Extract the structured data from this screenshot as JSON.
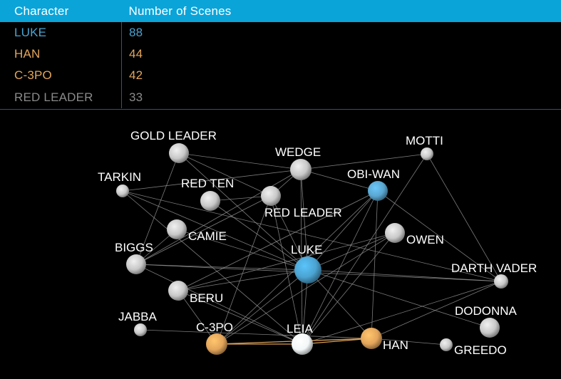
{
  "table": {
    "headers": {
      "character": "Character",
      "scenes": "Number of Scenes"
    },
    "rows": [
      {
        "name": "LUKE",
        "scenes": "88",
        "color": "#4ba3d1"
      },
      {
        "name": "HAN",
        "scenes": "44",
        "color": "#e3a55b"
      },
      {
        "name": "C-3PO",
        "scenes": "42",
        "color": "#e3a55b"
      },
      {
        "name": "RED LEADER",
        "scenes": "33",
        "color": "#8a8a8a"
      }
    ]
  },
  "colors": {
    "header_bg": "#0aa4d9",
    "luke": "#4ba3d1",
    "obi_wan": "#5aa6d0",
    "highlight": "#e3a55b",
    "leia": "#f3f7f7",
    "default_node": "#c8c8c8",
    "edge": "#9a9a9a"
  },
  "network": {
    "nodes": [
      {
        "id": "gold-leader",
        "label": "GOLD LEADER",
        "color": "default",
        "icon": "sphere"
      },
      {
        "id": "wedge",
        "label": "WEDGE",
        "color": "default",
        "icon": "sphere"
      },
      {
        "id": "motti",
        "label": "MOTTI",
        "color": "default",
        "icon": "sphere"
      },
      {
        "id": "tarkin",
        "label": "TARKIN",
        "color": "default",
        "icon": "sphere"
      },
      {
        "id": "red-ten",
        "label": "RED TEN",
        "color": "default",
        "icon": "sphere"
      },
      {
        "id": "obi-wan",
        "label": "OBI-WAN",
        "color": "obi_wan",
        "icon": "sphere"
      },
      {
        "id": "red-leader",
        "label": "RED LEADER",
        "color": "default",
        "icon": "sphere"
      },
      {
        "id": "camie",
        "label": "CAMIE",
        "color": "default",
        "icon": "sphere"
      },
      {
        "id": "owen",
        "label": "OWEN",
        "color": "default",
        "icon": "sphere"
      },
      {
        "id": "biggs",
        "label": "BIGGS",
        "color": "default",
        "icon": "sphere"
      },
      {
        "id": "luke",
        "label": "LUKE",
        "color": "luke",
        "icon": "sphere"
      },
      {
        "id": "darth-vader",
        "label": "DARTH VADER",
        "color": "default",
        "icon": "sphere"
      },
      {
        "id": "beru",
        "label": "BERU",
        "color": "default",
        "icon": "sphere"
      },
      {
        "id": "dodonna",
        "label": "DODONNA",
        "color": "default",
        "icon": "sphere"
      },
      {
        "id": "jabba",
        "label": "JABBA",
        "color": "default",
        "icon": "sphere"
      },
      {
        "id": "c-3po",
        "label": "C-3PO",
        "color": "highlight",
        "icon": "sphere"
      },
      {
        "id": "leia",
        "label": "LEIA",
        "color": "leia",
        "icon": "sphere"
      },
      {
        "id": "han",
        "label": "HAN",
        "color": "highlight",
        "icon": "sphere"
      },
      {
        "id": "greedo",
        "label": "GREEDO",
        "color": "default",
        "icon": "sphere"
      }
    ],
    "edges": [
      [
        "gold-leader",
        "wedge"
      ],
      [
        "gold-leader",
        "red-leader"
      ],
      [
        "gold-leader",
        "luke"
      ],
      [
        "gold-leader",
        "biggs"
      ],
      [
        "wedge",
        "red-leader"
      ],
      [
        "wedge",
        "luke"
      ],
      [
        "wedge",
        "biggs"
      ],
      [
        "wedge",
        "leia"
      ],
      [
        "wedge",
        "obi-wan"
      ],
      [
        "wedge",
        "tarkin"
      ],
      [
        "motti",
        "darth-vader"
      ],
      [
        "motti",
        "leia"
      ],
      [
        "motti",
        "wedge"
      ],
      [
        "tarkin",
        "luke"
      ],
      [
        "tarkin",
        "darth-vader"
      ],
      [
        "tarkin",
        "leia"
      ],
      [
        "red-ten",
        "red-leader"
      ],
      [
        "red-ten",
        "luke"
      ],
      [
        "red-leader",
        "luke"
      ],
      [
        "red-leader",
        "biggs"
      ],
      [
        "red-leader",
        "leia"
      ],
      [
        "red-leader",
        "c-3po"
      ],
      [
        "obi-wan",
        "luke"
      ],
      [
        "obi-wan",
        "leia"
      ],
      [
        "obi-wan",
        "han"
      ],
      [
        "obi-wan",
        "c-3po"
      ],
      [
        "obi-wan",
        "darth-vader"
      ],
      [
        "obi-wan",
        "beru"
      ],
      [
        "camie",
        "luke"
      ],
      [
        "camie",
        "biggs"
      ],
      [
        "owen",
        "luke"
      ],
      [
        "owen",
        "c-3po"
      ],
      [
        "owen",
        "beru"
      ],
      [
        "owen",
        "leia"
      ],
      [
        "biggs",
        "luke"
      ],
      [
        "biggs",
        "leia"
      ],
      [
        "biggs",
        "darth-vader"
      ],
      [
        "luke",
        "leia"
      ],
      [
        "luke",
        "han"
      ],
      [
        "luke",
        "c-3po"
      ],
      [
        "luke",
        "darth-vader"
      ],
      [
        "luke",
        "dodonna"
      ],
      [
        "luke",
        "beru"
      ],
      [
        "darth-vader",
        "leia"
      ],
      [
        "darth-vader",
        "han"
      ],
      [
        "beru",
        "c-3po"
      ],
      [
        "beru",
        "leia"
      ],
      [
        "jabba",
        "han"
      ],
      [
        "c-3po",
        "leia"
      ],
      [
        "c-3po",
        "han"
      ],
      [
        "leia",
        "han"
      ],
      [
        "han",
        "greedo"
      ]
    ]
  }
}
